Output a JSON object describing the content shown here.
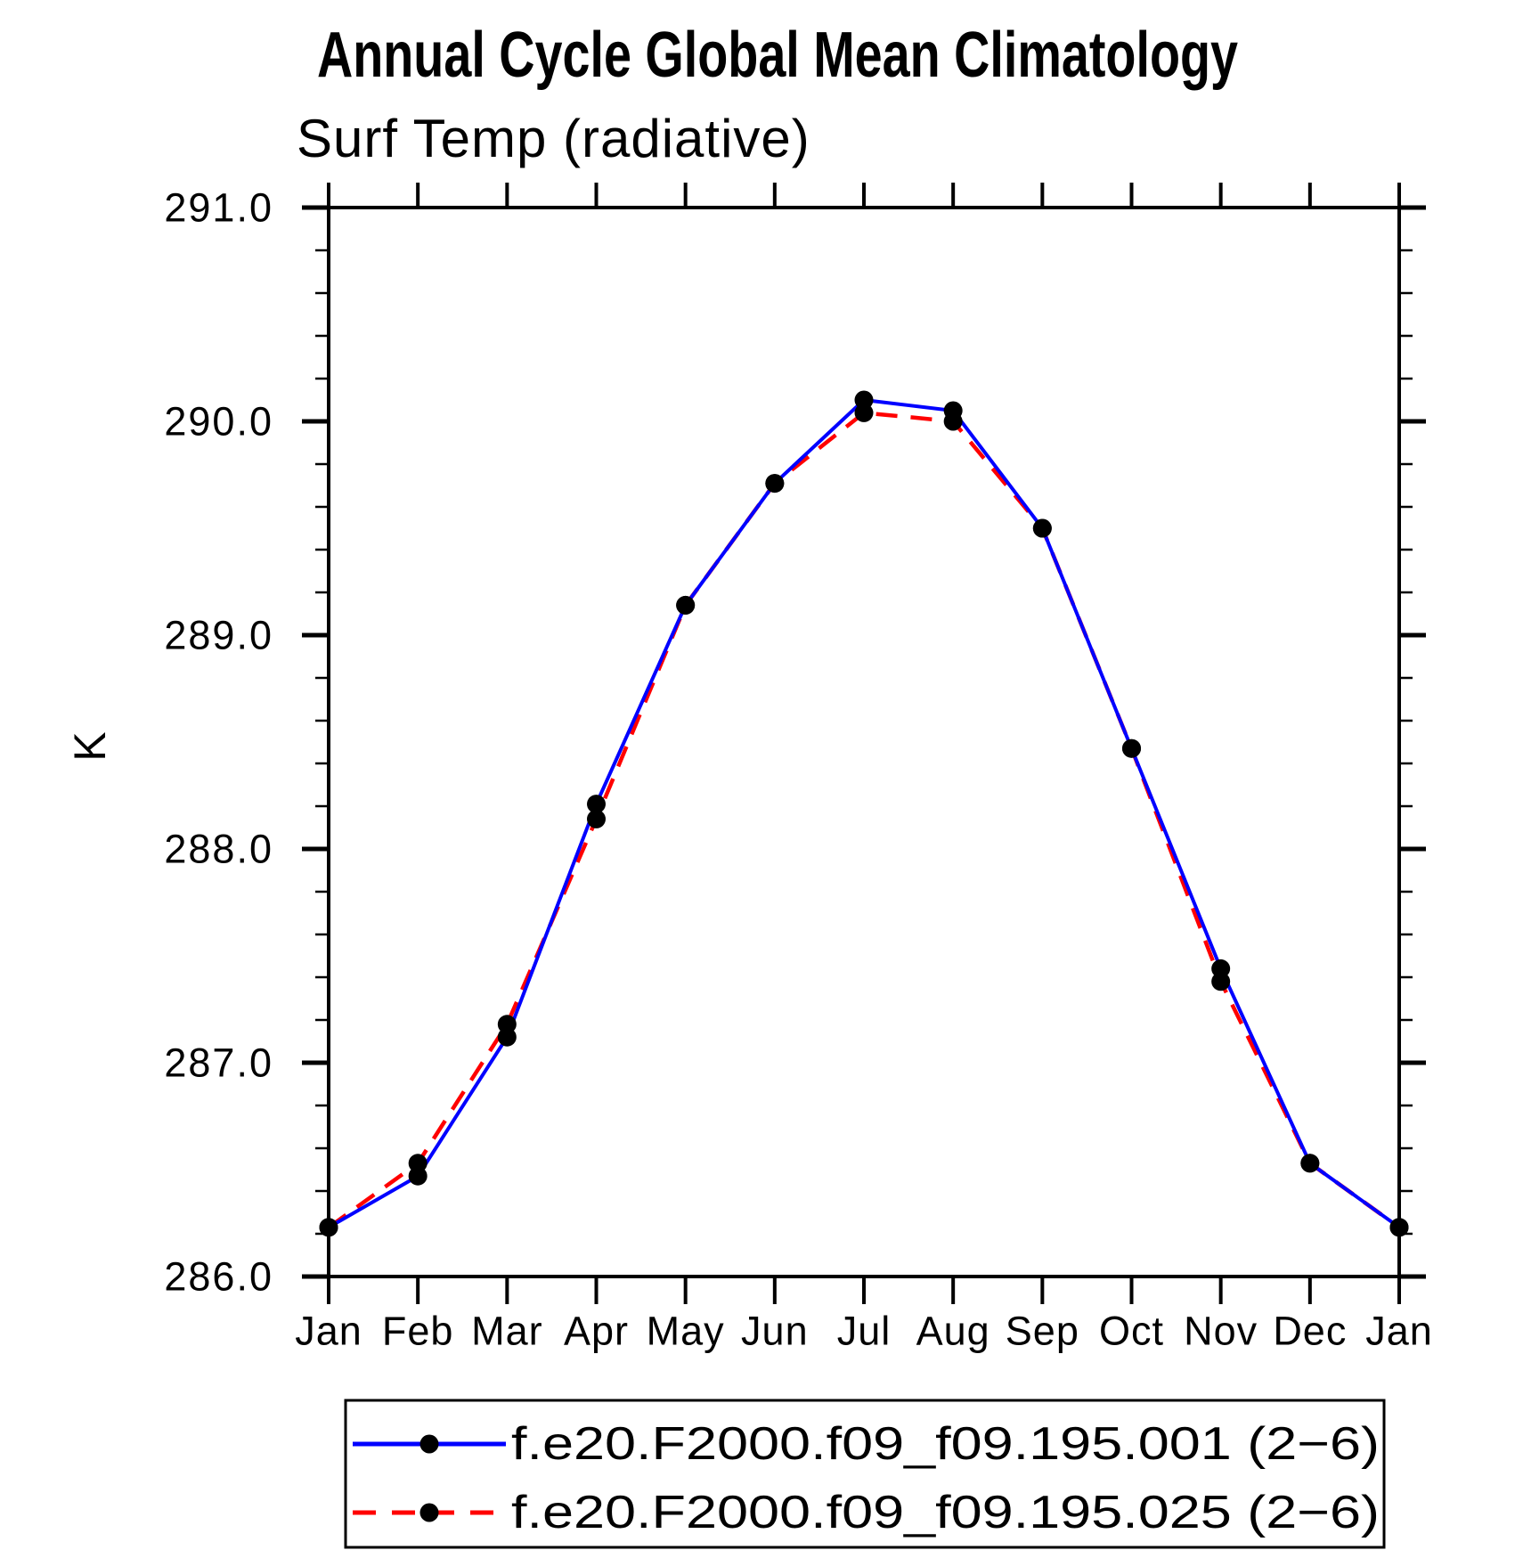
{
  "chart_data": {
    "type": "line",
    "title": "Annual Cycle Global Mean Climatology",
    "subtitle": "Surf Temp (radiative)",
    "ylabel": "K",
    "x_categories": [
      "Jan",
      "Feb",
      "Mar",
      "Apr",
      "May",
      "Jun",
      "Jul",
      "Aug",
      "Sep",
      "Oct",
      "Nov",
      "Dec",
      "Jan"
    ],
    "ylim": [
      286.0,
      291.0
    ],
    "y_major_step": 1.0,
    "y_minor_step": 0.2,
    "y_tick_labels": [
      "286.0",
      "287.0",
      "288.0",
      "289.0",
      "290.0",
      "291.0"
    ],
    "grid": "off",
    "legend_position": "bottom",
    "axis_color": "#000000",
    "series": [
      {
        "name": "f.e20.F2000.f09_f09.195.001 (2−6)",
        "color": "#0000ff",
        "line_style": "solid",
        "marker": "filled-circle",
        "marker_color": "#000000",
        "values": [
          286.23,
          286.47,
          287.12,
          288.21,
          289.14,
          289.71,
          290.1,
          290.05,
          289.5,
          288.47,
          287.44,
          286.53,
          286.23
        ]
      },
      {
        "name": "f.e20.F2000.f09_f09.195.025 (2−6)",
        "color": "#ff0000",
        "line_style": "dashed",
        "marker": "filled-circle",
        "marker_color": "#000000",
        "values": [
          286.23,
          286.53,
          287.18,
          288.14,
          289.14,
          289.71,
          290.04,
          290.0,
          289.5,
          288.47,
          287.38,
          286.53,
          286.23
        ]
      }
    ]
  }
}
